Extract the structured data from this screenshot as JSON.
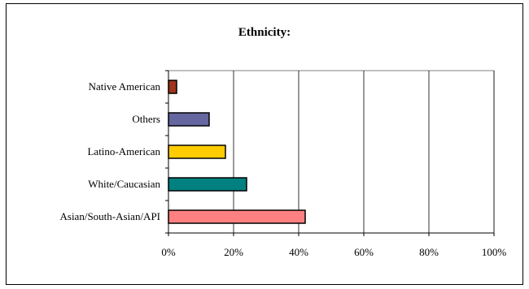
{
  "chart_data": {
    "type": "bar",
    "orientation": "horizontal",
    "title": "Ethnicity:",
    "xlabel": "",
    "ylabel": "",
    "categories": [
      "Native American",
      "Others",
      "Latino-American",
      "White/Caucasian",
      "Asian/South-Asian/API"
    ],
    "values": [
      2.5,
      12.5,
      17.5,
      24,
      42
    ],
    "colors": [
      "#A0341C",
      "#6666A0",
      "#FFCC00",
      "#008080",
      "#FF8080"
    ],
    "xlim": [
      0,
      100
    ],
    "xticks": [
      0,
      20,
      40,
      60,
      80,
      100
    ],
    "xtick_labels": [
      "0%",
      "20%",
      "40%",
      "60%",
      "80%",
      "100%"
    ],
    "grid": "vertical",
    "legend": "none"
  }
}
